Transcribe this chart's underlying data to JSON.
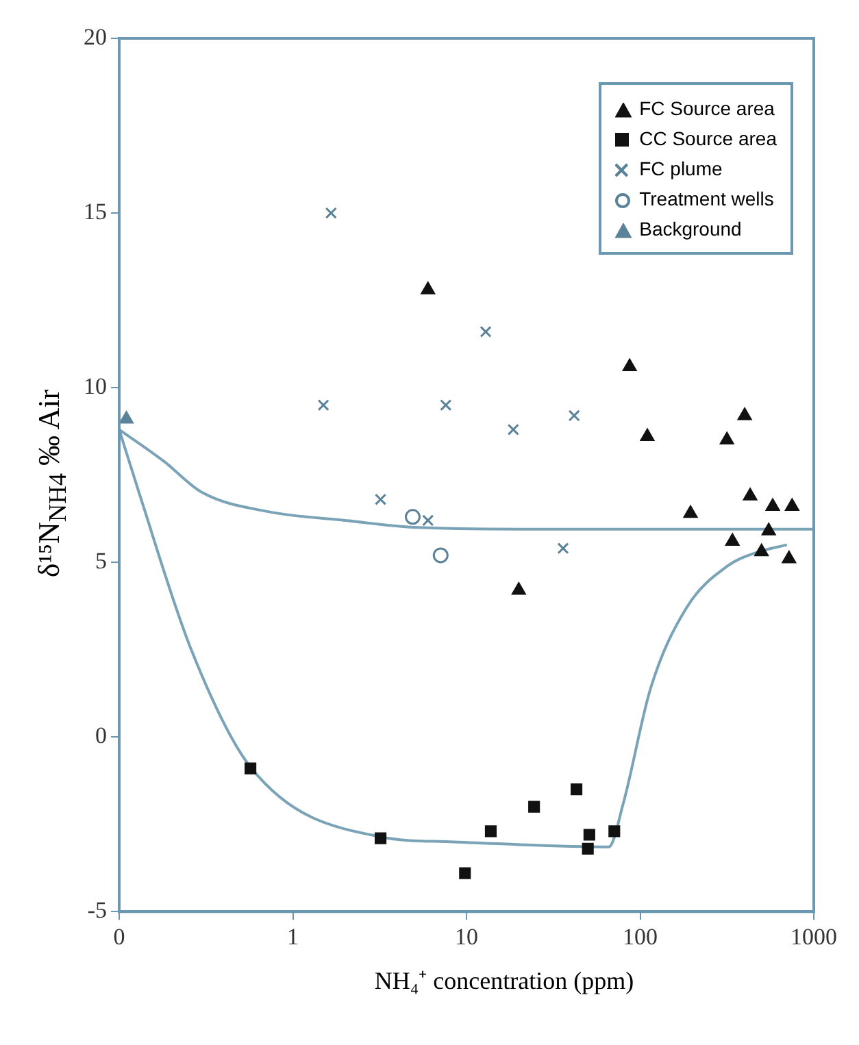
{
  "chart_data": {
    "type": "scatter",
    "xlabel": "NH₄⁺ concentration (ppm)",
    "ylabel": "δ¹⁵N$_{NH4}$ ‰ Air",
    "log": "x",
    "xlim": [
      0.1,
      1000
    ],
    "xticks": [
      {
        "value": 0.1,
        "label": "0"
      },
      1,
      10,
      100,
      1000
    ],
    "ylim": [
      -5,
      20
    ],
    "yticks": [
      -5,
      0,
      5,
      10,
      15,
      20
    ],
    "grid": false,
    "legend": "top right",
    "series": [
      {
        "name": "FC Source area",
        "marker": "triangle",
        "color": "#111111",
        "x": [
          6.0,
          20,
          87,
          110,
          195,
          316,
          400,
          430,
          580,
          750,
          340,
          500,
          720,
          550
        ],
        "values": [
          12.8,
          4.2,
          10.6,
          8.6,
          6.4,
          8.5,
          9.2,
          6.9,
          6.6,
          6.6,
          5.6,
          5.3,
          5.1,
          5.9
        ]
      },
      {
        "name": "CC Source area",
        "marker": "square",
        "color": "#111111",
        "x": [
          0.57,
          3.2,
          9.8,
          13.8,
          24.5,
          43,
          51,
          50,
          71
        ],
        "values": [
          -0.9,
          -2.9,
          -3.9,
          -2.7,
          -2.0,
          -1.5,
          -2.8,
          -3.2,
          -2.7
        ]
      },
      {
        "name": "FC plume",
        "marker": "cross",
        "color": "#5a8299",
        "x": [
          1.66,
          1.5,
          3.2,
          6.0,
          7.6,
          12.9,
          18.6,
          36,
          41.7
        ],
        "values": [
          15.0,
          9.5,
          6.8,
          6.2,
          9.5,
          11.6,
          8.8,
          5.4,
          9.2
        ]
      },
      {
        "name": "Treatment wells",
        "marker": "circle",
        "color": "#5a8299",
        "x": [
          4.9,
          7.1
        ],
        "values": [
          6.3,
          5.2
        ]
      },
      {
        "name": "Background",
        "marker": "triangle",
        "color": "#5a8299",
        "x": [
          0.11
        ],
        "values": [
          9.1
        ]
      },
      {
        "type": "line",
        "marker": "none",
        "color": "#7aa3b8",
        "x": [
          0.1,
          0.18,
          0.3,
          0.72,
          2.0,
          5,
          20,
          100,
          1000
        ],
        "values": [
          8.8,
          7.9,
          7.0,
          6.45,
          6.2,
          6.0,
          5.95,
          5.95,
          5.95
        ]
      },
      {
        "type": "line",
        "marker": "none",
        "color": "#7aa3b8",
        "x": [
          0.1,
          0.13,
          0.26,
          0.57,
          3.2,
          8,
          66,
          80,
          115,
          185,
          320,
          480,
          700
        ],
        "values": [
          8.8,
          7.0,
          2.5,
          -0.86,
          -2.86,
          -3.0,
          -3.15,
          -1.9,
          1.4,
          3.7,
          4.9,
          5.3,
          5.5
        ]
      }
    ]
  }
}
